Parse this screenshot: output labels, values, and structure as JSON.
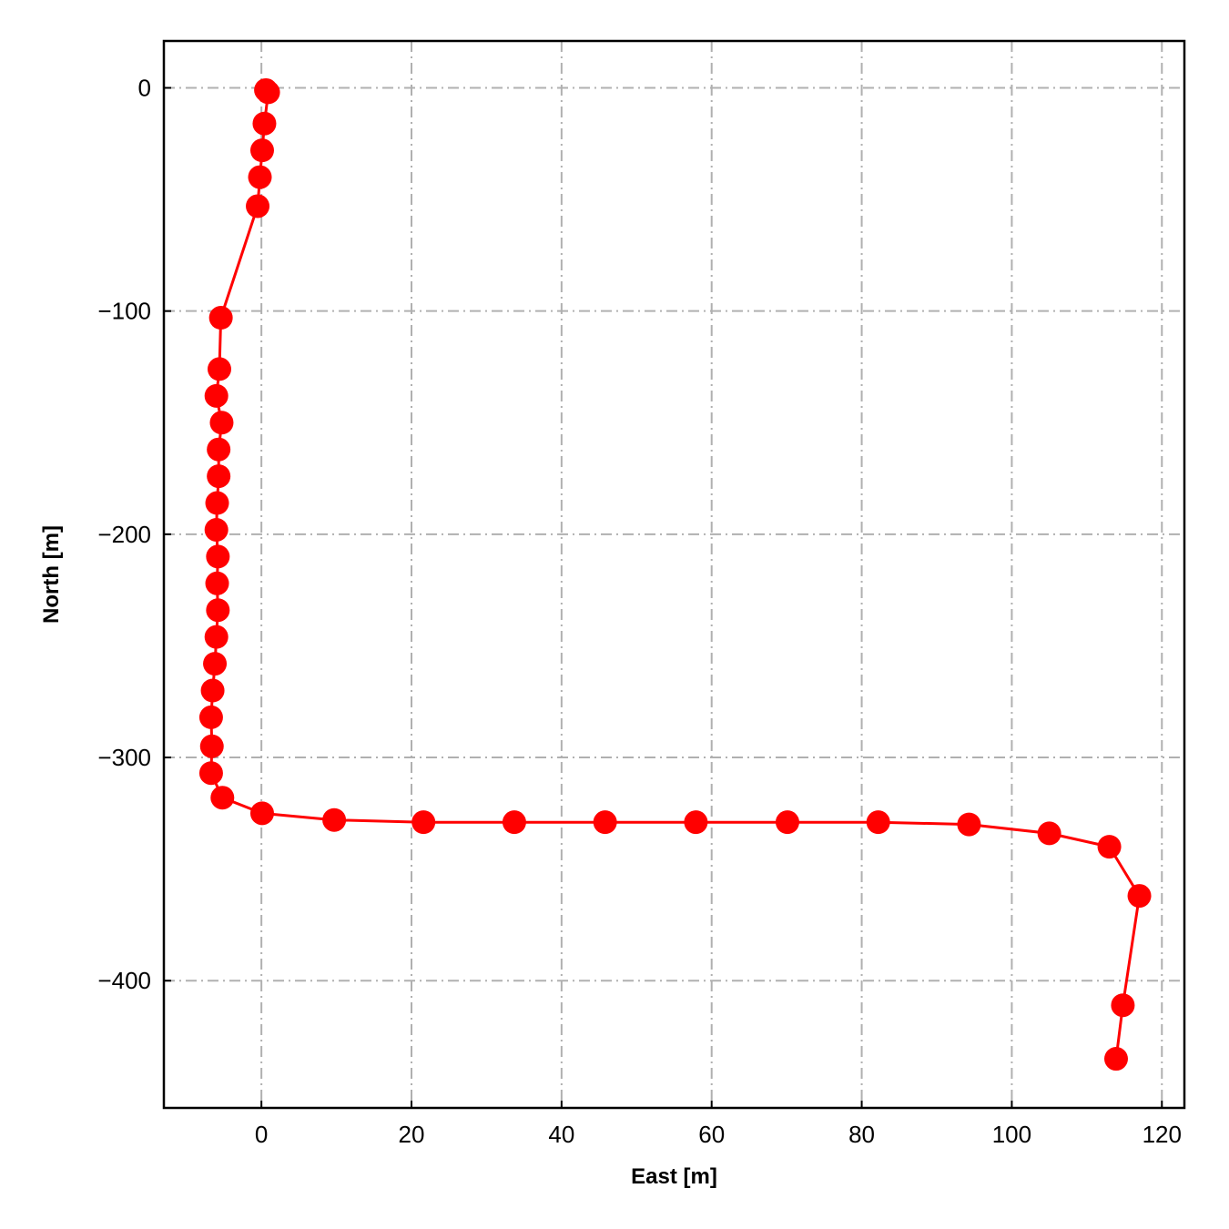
{
  "chart_data": {
    "type": "line",
    "xlabel": "East [m]",
    "ylabel": "North [m]",
    "xlim": [
      -13,
      123
    ],
    "ylim": [
      -457,
      21
    ],
    "x_ticks": [
      0,
      20,
      40,
      60,
      80,
      100,
      120
    ],
    "y_ticks": [
      0,
      -100,
      -200,
      -300,
      -400
    ],
    "x_tick_labels": [
      "0",
      "20",
      "40",
      "60",
      "80",
      "100",
      "120"
    ],
    "y_tick_labels": [
      "0",
      "−100",
      "−200",
      "−300",
      "−400"
    ],
    "grid": true,
    "grid_style": "dash-dot",
    "marker": "circle",
    "color": "#ff0000",
    "series": [
      {
        "x": [
          0.6,
          0.9,
          0.4,
          0.1,
          -0.2,
          -0.5,
          -5.4,
          -5.6,
          -6.0,
          -5.3,
          -5.7,
          -5.7,
          -5.9,
          -6.0,
          -5.8,
          -5.9,
          -5.8,
          -6.0,
          -6.2,
          -6.5,
          -6.7,
          -6.6,
          -6.7,
          -5.2,
          0.1,
          9.7,
          21.6,
          33.7,
          45.8,
          57.9,
          70.1,
          82.2,
          94.3,
          105.0,
          113.0,
          117.0,
          114.8,
          113.9
        ],
        "y": [
          -1,
          -2,
          -16,
          -28,
          -40,
          -53,
          -103,
          -126,
          -138,
          -150,
          -162,
          -174,
          -186,
          -198,
          -210,
          -222,
          -234,
          -246,
          -258,
          -270,
          -282,
          -295,
          -307,
          -318,
          -325,
          -328,
          -329,
          -329,
          -329,
          -329,
          -329,
          -329,
          -330,
          -334,
          -340,
          -362,
          -411,
          -435
        ]
      }
    ]
  }
}
